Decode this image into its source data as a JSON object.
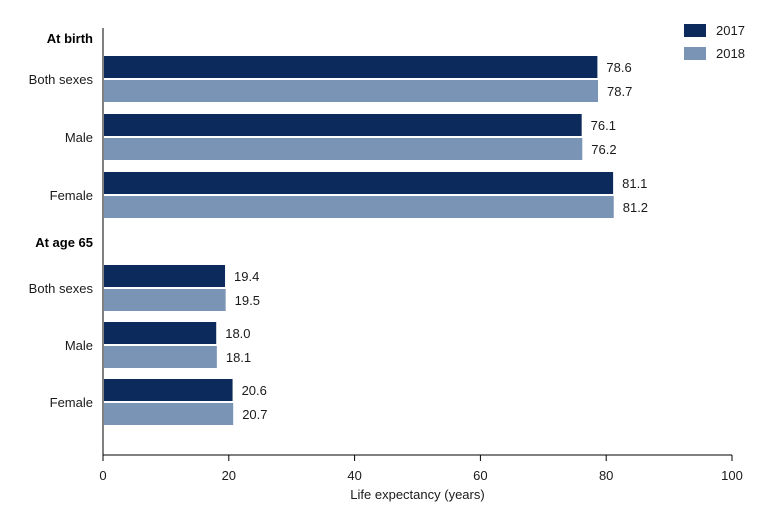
{
  "chart_data": {
    "type": "bar",
    "orientation": "horizontal",
    "xlabel": "Life expectancy (years)",
    "xlim": [
      0,
      100
    ],
    "xticks": [
      0,
      20,
      40,
      60,
      80,
      100
    ],
    "grid": false,
    "legend": "top-right",
    "groups": [
      {
        "label": "At birth",
        "categories": [
          "Both sexes",
          "Male",
          "Female"
        ]
      },
      {
        "label": "At age 65",
        "categories": [
          "Both sexes",
          "Male",
          "Female"
        ]
      }
    ],
    "series": [
      {
        "name": "2017",
        "color": "#0c2a5b",
        "values": [
          78.6,
          76.1,
          81.1,
          19.4,
          18.0,
          20.6
        ],
        "labels": [
          "78.6",
          "76.1",
          "81.1",
          "19.4",
          "18.0",
          "20.6"
        ]
      },
      {
        "name": "2018",
        "color": "#7a94b5",
        "values": [
          78.7,
          76.2,
          81.2,
          19.5,
          18.1,
          20.7
        ],
        "labels": [
          "78.7",
          "76.2",
          "81.2",
          "19.5",
          "18.1",
          "20.7"
        ]
      }
    ]
  }
}
